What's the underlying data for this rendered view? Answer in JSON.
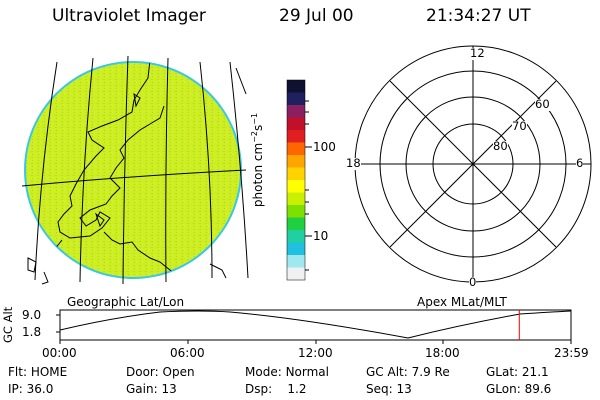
{
  "header": {
    "title": "Ultraviolet Imager",
    "date": "29 Jul 00",
    "time": "21:34:27 UT"
  },
  "colorbar": {
    "unit_prefix": "photon cm",
    "unit_exp1": "−2",
    "unit_mid": "s",
    "unit_exp2": "−1",
    "ticks": [
      "100",
      "10"
    ],
    "colors": [
      "#101030",
      "#202060",
      "#8a2060",
      "#c0102a",
      "#e02020",
      "#ff6600",
      "#ffa500",
      "#ffd200",
      "#ffff00",
      "#c8f000",
      "#7de000",
      "#20d040",
      "#20d0a0",
      "#20c0e0",
      "#a0e8f0",
      "#f0f0f0"
    ]
  },
  "geo_map": {
    "label": "Geographic Lat/Lon",
    "fill_color": "#ccee22"
  },
  "polar_plot": {
    "label": "Apex MLat/MLT",
    "mlt_labels": {
      "top": "12",
      "left": "18",
      "right": "6",
      "bottom": "0"
    },
    "lat_labels": [
      "60",
      "70",
      "80"
    ]
  },
  "timeline": {
    "ylabel": "GC Alt",
    "y_ticks": [
      "9.0",
      "1.8"
    ],
    "x_ticks": [
      "00:00",
      "06:00",
      "12:00",
      "18:00",
      "23:59"
    ],
    "cursor_color": "#ff0000",
    "current_hour": 21.57
  },
  "status": {
    "flt_label": "Flt:",
    "flt": "HOME",
    "ip_label": "IP:",
    "ip": "36.0",
    "door_label": "Door:",
    "door": "Open",
    "gain_label": "Gain:",
    "gain": "13",
    "mode_label": "Mode:",
    "mode": "Normal",
    "dsp_label": "Dsp:",
    "dsp": "1.2",
    "gcalt_label": "GC Alt:",
    "gcalt": "7.9 Re",
    "seq_label": "Seq:",
    "seq": "13",
    "glat_label": "GLat:",
    "glat": "21.1",
    "glon_label": "GLon:",
    "glon": "89.6"
  }
}
